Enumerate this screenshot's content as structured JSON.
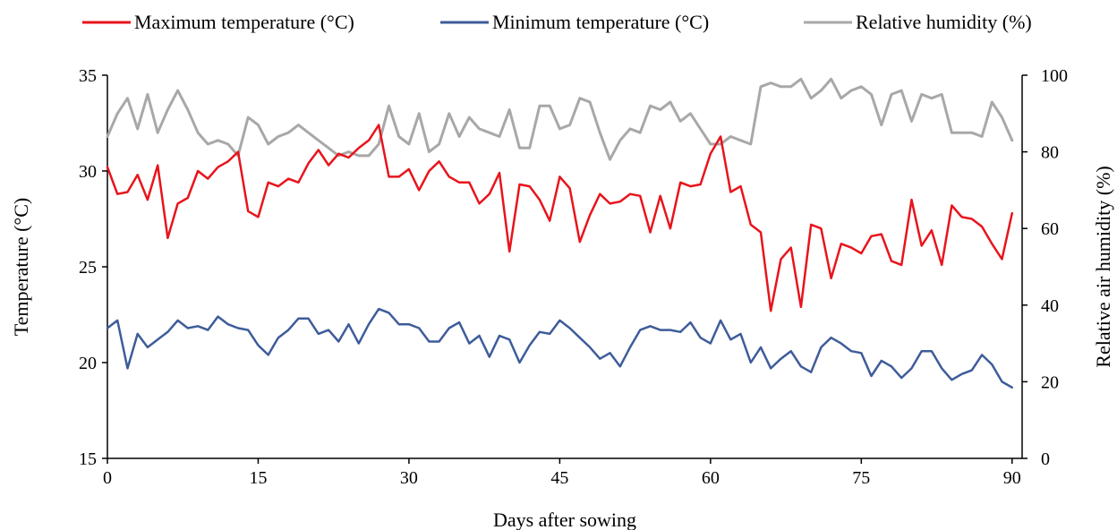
{
  "chart_data": {
    "type": "line",
    "xlabel": "Days after sowing",
    "ylabel": "Temperature (°C)",
    "y2label": "Relative air humidity  (%)",
    "xlim": [
      0,
      91
    ],
    "ylim": [
      15,
      35
    ],
    "y2lim": [
      0,
      100
    ],
    "xticks": [
      0,
      15,
      30,
      45,
      60,
      75,
      90
    ],
    "yticks": [
      15,
      20,
      25,
      30,
      35
    ],
    "y2ticks": [
      0,
      20,
      40,
      60,
      80,
      100
    ],
    "grid": false,
    "legend_position": "top",
    "series": [
      {
        "name": "Maximum temperature (°C)",
        "axis": "left",
        "color": "#e8141c",
        "values": [
          30.2,
          28.8,
          28.9,
          29.8,
          28.5,
          30.3,
          26.5,
          28.3,
          28.6,
          30.0,
          29.6,
          30.2,
          30.5,
          31.0,
          27.9,
          27.6,
          29.4,
          29.2,
          29.6,
          29.4,
          30.4,
          31.1,
          30.3,
          30.9,
          30.7,
          31.2,
          31.6,
          32.4,
          29.7,
          29.7,
          30.1,
          29.0,
          30.0,
          30.5,
          29.7,
          29.4,
          29.4,
          28.3,
          28.8,
          29.9,
          25.8,
          29.3,
          29.2,
          28.5,
          27.4,
          29.7,
          29.1,
          26.3,
          27.7,
          28.8,
          28.3,
          28.4,
          28.8,
          28.7,
          26.8,
          28.7,
          27.0,
          29.4,
          29.2,
          29.3,
          30.9,
          31.8,
          28.9,
          29.2,
          27.2,
          26.8,
          22.7,
          25.4,
          26.0,
          22.9,
          27.2,
          27.0,
          24.4,
          26.2,
          26.0,
          25.7,
          26.6,
          26.7,
          25.3,
          25.1,
          28.5,
          26.1,
          26.9,
          25.1,
          28.2,
          27.6,
          27.5,
          27.1,
          26.2,
          25.4,
          27.8
        ]
      },
      {
        "name": "Minimum temperature (°C)",
        "axis": "left",
        "color": "#3e5c9a",
        "values": [
          21.8,
          22.2,
          19.7,
          21.5,
          20.8,
          21.2,
          21.6,
          22.2,
          21.8,
          21.9,
          21.7,
          22.4,
          22.0,
          21.8,
          21.7,
          20.9,
          20.4,
          21.3,
          21.7,
          22.3,
          22.3,
          21.5,
          21.7,
          21.1,
          22.0,
          21.0,
          22.0,
          22.8,
          22.6,
          22.0,
          22.0,
          21.8,
          21.1,
          21.1,
          21.8,
          22.1,
          21.0,
          21.4,
          20.3,
          21.4,
          21.2,
          20.0,
          20.9,
          21.6,
          21.5,
          22.2,
          21.8,
          21.3,
          20.8,
          20.2,
          20.5,
          19.8,
          20.8,
          21.7,
          21.9,
          21.7,
          21.7,
          21.6,
          22.1,
          21.3,
          21.0,
          22.2,
          21.2,
          21.5,
          20.0,
          20.8,
          19.7,
          20.2,
          20.6,
          19.8,
          19.5,
          20.8,
          21.3,
          21.0,
          20.6,
          20.5,
          19.3,
          20.1,
          19.8,
          19.2,
          19.7,
          20.6,
          20.6,
          19.7,
          19.1,
          19.4,
          19.6,
          20.4,
          19.9,
          19.0,
          18.7
        ]
      },
      {
        "name": "Relative humidity (%)",
        "axis": "right",
        "color": "#a8a8a8",
        "values": [
          84,
          90,
          94,
          86,
          95,
          85,
          91,
          96,
          91,
          85,
          82,
          83,
          82,
          79,
          89,
          87,
          82,
          84,
          85,
          87,
          85,
          83,
          81,
          79,
          80,
          79,
          79,
          82,
          92,
          84,
          82,
          90,
          80,
          82,
          90,
          84,
          89,
          86,
          85,
          84,
          91,
          81,
          81,
          92,
          92,
          86,
          87,
          94,
          93,
          85,
          78,
          83,
          86,
          85,
          92,
          91,
          93,
          88,
          90,
          86,
          82,
          82,
          84,
          83,
          82,
          97,
          98,
          97,
          97,
          99,
          94,
          96,
          99,
          94,
          96,
          97,
          95,
          87,
          95,
          96,
          88,
          95,
          94,
          95,
          85,
          85,
          85,
          84,
          93,
          89,
          83
        ]
      }
    ]
  }
}
